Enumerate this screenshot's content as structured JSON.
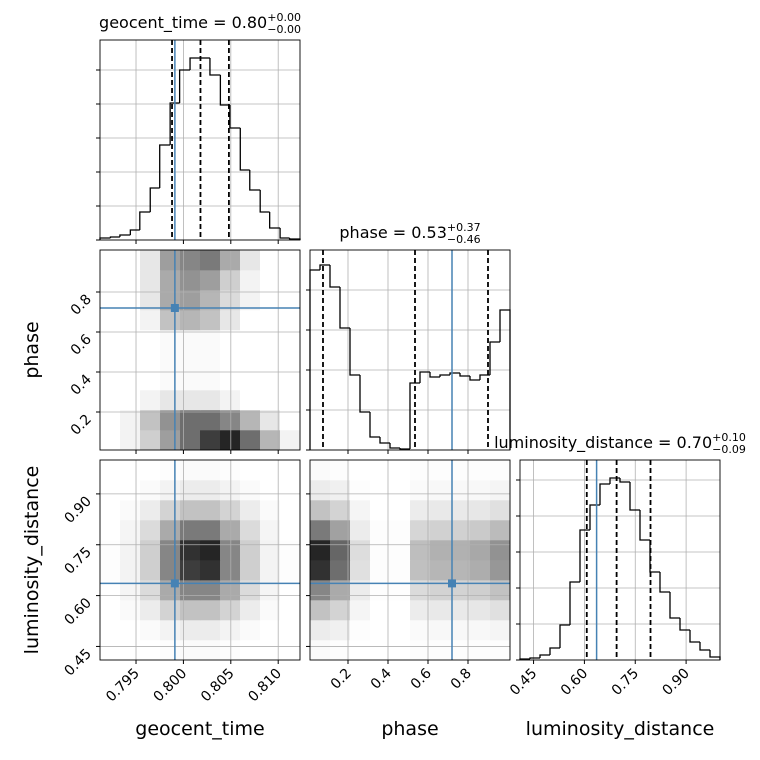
{
  "chart_data": {
    "type": "corner",
    "grid": true,
    "truth_color": "#4682b4",
    "hist_color": "#000000",
    "parameters": [
      {
        "label": "geocent_time",
        "title": {
          "text": "geocent_time = 0.80",
          "sup": "+0.00",
          "sub": "−0.00"
        },
        "lim": [
          0.7912,
          0.8123
        ],
        "ticks": [
          0.795,
          {
            "value": 0.8,
            "label": "0.800"
          },
          0.805,
          {
            "value": 0.81,
            "label": "0.810"
          }
        ],
        "truth": 0.7991,
        "quantiles": [
          0.7988,
          0.8018,
          0.8048
        ],
        "bins": [
          0.7912,
          0.7923,
          0.7933,
          0.7944,
          0.7954,
          0.7965,
          0.7975,
          0.7986,
          0.7996,
          0.8007,
          0.8018,
          0.8028,
          0.8039,
          0.8049,
          0.806,
          0.807,
          0.8081,
          0.8091,
          0.8102,
          0.8112,
          0.8123
        ],
        "values": [
          2,
          3,
          5,
          10,
          28,
          52,
          95,
          137,
          170,
          182,
          182,
          165,
          135,
          112,
          70,
          50,
          28,
          12,
          2,
          1
        ],
        "hist_ylim": [
          0,
          200
        ],
        "hist_yticks": [
          0,
          34,
          68,
          102,
          136,
          170
        ]
      },
      {
        "label": "phase",
        "title": {
          "text": "phase = 0.53",
          "sup": "+0.37",
          "sub": "−0.46"
        },
        "lim": [
          0.01,
          1.01
        ],
        "ticks": [
          0.2,
          0.4,
          0.6,
          0.8
        ],
        "truth": 0.72,
        "quantiles": [
          0.075,
          0.535,
          0.9
        ],
        "bins": [
          0.01,
          0.06,
          0.11,
          0.16,
          0.21,
          0.26,
          0.31,
          0.36,
          0.41,
          0.46,
          0.51,
          0.56,
          0.61,
          0.66,
          0.71,
          0.76,
          0.81,
          0.86,
          0.91,
          0.96,
          1.01
        ],
        "values": [
          180,
          185,
          163,
          122,
          75,
          38,
          13,
          7,
          2,
          1,
          67,
          78,
          73,
          75,
          77,
          74,
          70,
          75,
          108,
          140
        ],
        "hist_ylim": [
          0,
          200
        ],
        "hist_yticks": [
          0,
          40,
          80,
          120,
          160
        ]
      },
      {
        "label": "luminosity_distance",
        "title": {
          "text": "luminosity_distance = 0.70",
          "sup": "+0.10",
          "sub": "−0.09"
        },
        "lim": [
          0.41,
          1.0
        ],
        "ticks": [
          0.45,
          {
            "value": 0.6,
            "label": "0.60"
          },
          0.75,
          {
            "value": 0.9,
            "label": "0.90"
          }
        ],
        "truth": 0.636,
        "quantiles": [
          0.607,
          0.695,
          0.795
        ],
        "bins": [
          0.41,
          0.4395,
          0.469,
          0.4985,
          0.528,
          0.5575,
          0.587,
          0.6165,
          0.646,
          0.6755,
          0.705,
          0.7345,
          0.764,
          0.7935,
          0.823,
          0.8525,
          0.882,
          0.9115,
          0.941,
          0.9705,
          1.0
        ],
        "values": [
          1,
          2,
          5,
          12,
          35,
          78,
          130,
          155,
          176,
          182,
          178,
          150,
          120,
          88,
          68,
          42,
          30,
          18,
          10,
          3
        ],
        "hist_ylim": [
          0,
          200
        ],
        "hist_yticks": [
          0,
          36,
          72,
          108,
          144,
          180
        ]
      }
    ],
    "density": [
      {
        "x": 0,
        "y": 1,
        "values": [
          [
            0,
            0.05,
            0.2,
            0.4,
            0.6,
            0.8,
            0.9,
            0.6,
            0.3,
            0.05
          ],
          [
            0,
            0.05,
            0.25,
            0.45,
            0.6,
            0.6,
            0.5,
            0.3,
            0.1,
            0
          ],
          [
            0,
            0,
            0.05,
            0.1,
            0.1,
            0.1,
            0.05,
            0,
            0,
            0
          ],
          [
            0,
            0,
            0,
            0.02,
            0.02,
            0.02,
            0,
            0,
            0,
            0
          ],
          [
            0,
            0,
            0,
            0.02,
            0.02,
            0.02,
            0,
            0,
            0,
            0
          ],
          [
            0,
            0,
            0,
            0.02,
            0.02,
            0.02,
            0,
            0,
            0,
            0
          ],
          [
            0,
            0,
            0.05,
            0.25,
            0.3,
            0.25,
            0.1,
            0,
            0,
            0
          ],
          [
            0,
            0,
            0.1,
            0.35,
            0.4,
            0.3,
            0.15,
            0.05,
            0,
            0
          ],
          [
            0,
            0,
            0.1,
            0.35,
            0.45,
            0.4,
            0.2,
            0.05,
            0,
            0
          ],
          [
            0,
            0,
            0.1,
            0.4,
            0.5,
            0.55,
            0.35,
            0.1,
            0,
            0
          ]
        ]
      },
      {
        "x": 0,
        "y": 2,
        "values": [
          [
            0,
            0,
            0,
            0.01,
            0.02,
            0.02,
            0.01,
            0,
            0,
            0
          ],
          [
            0,
            0,
            0.02,
            0.05,
            0.08,
            0.08,
            0.05,
            0.02,
            0,
            0
          ],
          [
            0,
            0.02,
            0.08,
            0.18,
            0.25,
            0.25,
            0.18,
            0.08,
            0.02,
            0
          ],
          [
            0,
            0.04,
            0.15,
            0.35,
            0.5,
            0.5,
            0.35,
            0.15,
            0.04,
            0
          ],
          [
            0.01,
            0.05,
            0.2,
            0.5,
            0.8,
            0.85,
            0.5,
            0.2,
            0.05,
            0.01
          ],
          [
            0.01,
            0.05,
            0.2,
            0.5,
            0.85,
            0.9,
            0.5,
            0.2,
            0.05,
            0.01
          ],
          [
            0,
            0.04,
            0.15,
            0.35,
            0.55,
            0.55,
            0.35,
            0.15,
            0.04,
            0
          ],
          [
            0,
            0.02,
            0.08,
            0.18,
            0.25,
            0.25,
            0.18,
            0.08,
            0.02,
            0
          ],
          [
            0,
            0,
            0.02,
            0.05,
            0.08,
            0.08,
            0.05,
            0.02,
            0,
            0
          ],
          [
            0,
            0,
            0,
            0.01,
            0.02,
            0.02,
            0.01,
            0,
            0,
            0
          ]
        ]
      },
      {
        "x": 1,
        "y": 2,
        "values": [
          [
            0.02,
            0.01,
            0,
            0,
            0,
            0.01,
            0.01,
            0.01,
            0.01,
            0.01
          ],
          [
            0.08,
            0.06,
            0.01,
            0,
            0,
            0.02,
            0.03,
            0.03,
            0.03,
            0.04
          ],
          [
            0.25,
            0.18,
            0.04,
            0,
            0,
            0.08,
            0.09,
            0.09,
            0.1,
            0.13
          ],
          [
            0.5,
            0.35,
            0.08,
            0.01,
            0.01,
            0.15,
            0.18,
            0.18,
            0.2,
            0.25
          ],
          [
            0.85,
            0.6,
            0.13,
            0.01,
            0.01,
            0.26,
            0.3,
            0.3,
            0.34,
            0.43
          ],
          [
            0.9,
            0.63,
            0.14,
            0.01,
            0.01,
            0.27,
            0.32,
            0.32,
            0.36,
            0.45
          ],
          [
            0.55,
            0.39,
            0.08,
            0.01,
            0.01,
            0.17,
            0.19,
            0.19,
            0.22,
            0.28
          ],
          [
            0.25,
            0.18,
            0.04,
            0,
            0,
            0.08,
            0.09,
            0.09,
            0.1,
            0.13
          ],
          [
            0.08,
            0.06,
            0.01,
            0,
            0,
            0.02,
            0.03,
            0.03,
            0.03,
            0.04
          ],
          [
            0.02,
            0.01,
            0,
            0,
            0,
            0.01,
            0.01,
            0.01,
            0.01,
            0.01
          ]
        ]
      }
    ]
  }
}
